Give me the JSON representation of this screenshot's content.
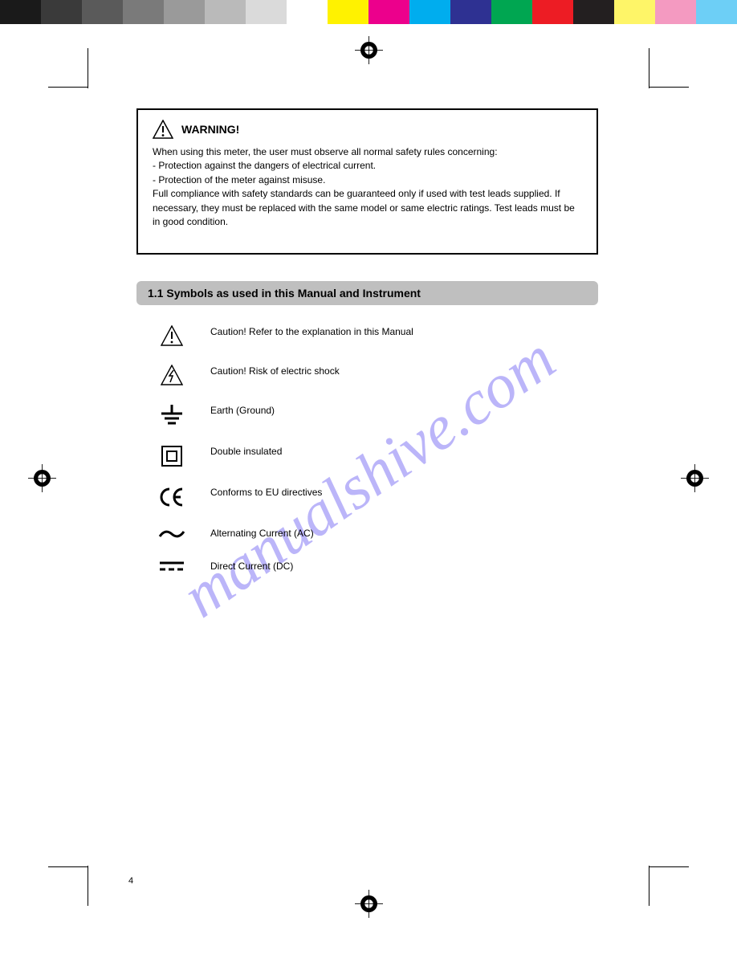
{
  "color_bar": {
    "swatches": [
      "#1a1a1a",
      "#3a3a3a",
      "#5a5a5a",
      "#7a7a7a",
      "#9a9a9a",
      "#bababa",
      "#dadada",
      "#ffffff",
      "#fff200",
      "#ec008c",
      "#00adee",
      "#2e3192",
      "#00a651",
      "#ed1c24",
      "#231f20",
      "#fef568",
      "#f49ac1",
      "#6dcff6"
    ]
  },
  "crop_marks": {
    "color": "#000000"
  },
  "warning_box": {
    "title": " WARNING!",
    "text": "When using this meter, the user must observe all normal safety rules concerning:\n- Protection against the dangers of electrical current.\n- Protection of the meter against misuse.\nFull compliance with safety standards can be guaranteed only if used with test leads supplied. If necessary, they must be replaced with the same model or same electric ratings. Test leads must be in good condition."
  },
  "section_header": "1.1 Symbols as used in this Manual and Instrument",
  "symbols": [
    {
      "icon": "triangle-bang",
      "text": "Caution! Refer to the explanation in this Manual"
    },
    {
      "icon": "triangle-bolt",
      "text": "Caution! Risk of electric shock"
    },
    {
      "icon": "ground",
      "text": "Earth (Ground)"
    },
    {
      "icon": "double-square",
      "text": "Double insulated"
    },
    {
      "icon": "ce",
      "text": "Conforms to EU directives"
    },
    {
      "icon": "tilde",
      "text": "Alternating Current (AC)"
    },
    {
      "icon": "dc",
      "text": "Direct Current (DC)"
    }
  ],
  "watermark": "manualshive.com",
  "page_number": "4"
}
